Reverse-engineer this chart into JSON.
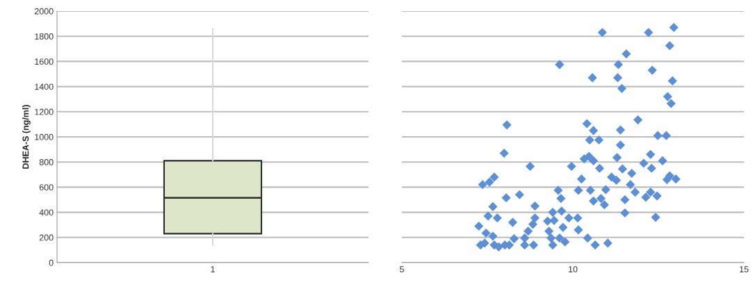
{
  "chart_data": [
    {
      "type": "box",
      "categories": [
        "1"
      ],
      "ylabel": "DHEA-S (ng/ml)",
      "ylim": [
        0,
        2000
      ],
      "yticks": [
        0,
        200,
        400,
        600,
        800,
        1000,
        1200,
        1400,
        1600,
        1800,
        2000
      ],
      "grid": "y",
      "color": "#dce6c8",
      "boxes": [
        {
          "low": 140,
          "q1": 230,
          "median": 515,
          "q3": 810,
          "high": 1860
        }
      ]
    },
    {
      "type": "scatter",
      "marker": "diamond",
      "xlim": [
        5,
        15
      ],
      "xticks": [
        5,
        10,
        15
      ],
      "ylim": [
        0,
        2000
      ],
      "yticks": [
        0,
        200,
        400,
        600,
        800,
        1000,
        1200,
        1400,
        1600,
        1800,
        2000
      ],
      "grid": "y",
      "tick_labels": "x",
      "series": [
        {
          "color": "#5b8fd6",
          "x": [
            10.86,
            12.21,
            12.95,
            12.83,
            11.56,
            11.33,
            9.61,
            10.57,
            12.32,
            11.31,
            11.43,
            12.91,
            12.77,
            12.87,
            11.9,
            10.41,
            10.6,
            11.39,
            12.48,
            12.73,
            8.07,
            10.49,
            10.76,
            11.39,
            10.33,
            10.47,
            10.6,
            10.78,
            9.96,
            11.29,
            11.45,
            11.72,
            12.27,
            12.07,
            12.3,
            12.62,
            12.83,
            13.01,
            12.75,
            10.25,
            11.13,
            11.27,
            11.68,
            10.16,
            10.51,
            10.96,
            11.82,
            12.27,
            12.13,
            12.46,
            10.6,
            10.82,
            10.92,
            11.52,
            11.52,
            12.42,
            10.14,
            9.88,
            9.67,
            9.65,
            9.57,
            9.71,
            10.16,
            9.61,
            9.77,
            10.43,
            10.65,
            11.02,
            7.99,
            8.75,
            7.7,
            7.56,
            7.36,
            8.05,
            8.44,
            8.89,
            7.66,
            7.52,
            7.79,
            8.24,
            8.89,
            9.41,
            9.45,
            8.83,
            8.69,
            9.3,
            7.25,
            7.46,
            7.66,
            7.3,
            7.42,
            7.7,
            7.83,
            8.01,
            8.14,
            8.28,
            8.59,
            8.85,
            8.59,
            9.41,
            9.36,
            9.26
          ],
          "values": [
            1830,
            1830,
            1870,
            1725,
            1660,
            1575,
            1575,
            1470,
            1530,
            1470,
            1385,
            1445,
            1320,
            1265,
            1135,
            1105,
            1050,
            1055,
            1010,
            1010,
            1095,
            975,
            975,
            935,
            825,
            845,
            810,
            750,
            765,
            835,
            745,
            710,
            860,
            790,
            750,
            810,
            690,
            665,
            660,
            665,
            680,
            655,
            620,
            575,
            575,
            580,
            560,
            560,
            520,
            530,
            490,
            510,
            460,
            500,
            395,
            360,
            355,
            355,
            410,
            510,
            575,
            280,
            260,
            195,
            165,
            195,
            140,
            155,
            870,
            765,
            680,
            640,
            620,
            515,
            540,
            450,
            445,
            370,
            355,
            320,
            355,
            400,
            335,
            305,
            250,
            250,
            290,
            235,
            210,
            140,
            155,
            140,
            125,
            140,
            140,
            190,
            140,
            140,
            195,
            140,
            195,
            330
          ]
        }
      ]
    }
  ]
}
